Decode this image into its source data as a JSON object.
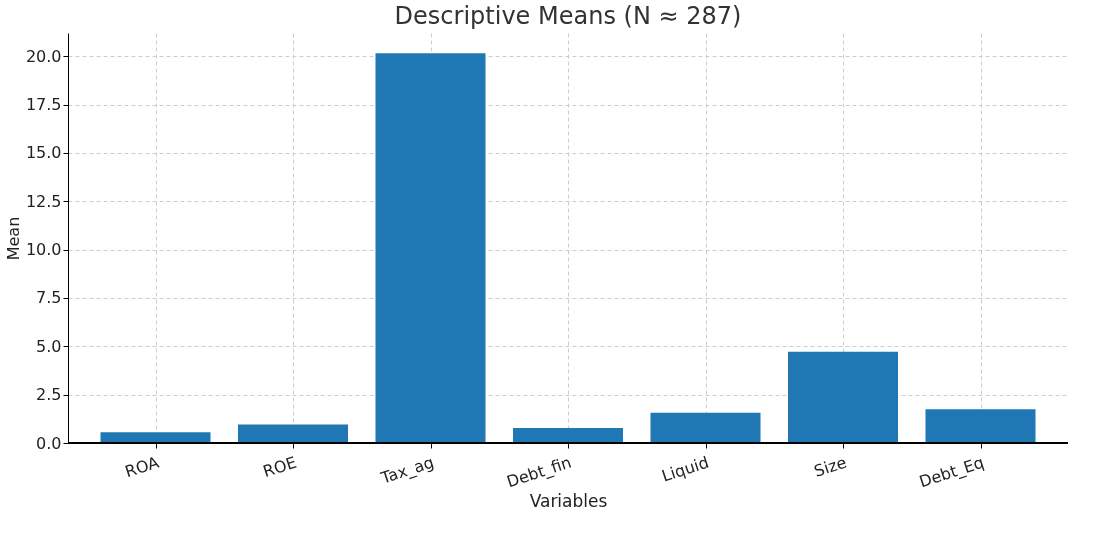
{
  "chart_data": {
    "type": "bar",
    "title": "Descriptive Means (N ≈ 287)",
    "xlabel": "Variables",
    "ylabel": "Mean",
    "categories": [
      "ROA",
      "ROE",
      "Tax_ag",
      "Debt_fin",
      "Liquid",
      "Size",
      "Debt_Eq"
    ],
    "values": [
      0.56,
      0.96,
      20.15,
      0.78,
      1.56,
      4.72,
      1.75
    ],
    "color": "#1f77b4",
    "ylim": [
      0,
      21.2
    ],
    "yticks": [
      {
        "value": 0,
        "label": "0.0"
      },
      2.5,
      {
        "value": 5,
        "label": "5.0"
      },
      7.5,
      {
        "value": 10,
        "label": "10.0"
      },
      12.5,
      {
        "value": 15,
        "label": "15.0"
      },
      17.5,
      {
        "value": 20,
        "label": "20.0"
      }
    ],
    "grid": true
  }
}
